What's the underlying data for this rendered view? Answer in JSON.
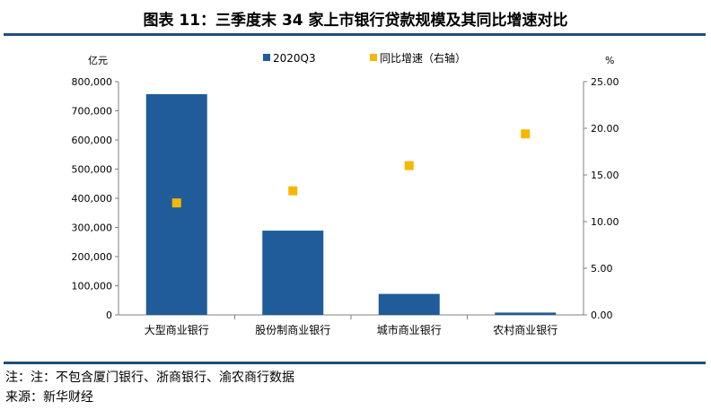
{
  "title": "图表 11：三季度末 34 家上市银行贷款规模及其同比增速对比",
  "notes": {
    "note": "注：注：不包含厦门银行、浙商银行、渝农商行数据",
    "source": "来源：新华财经"
  },
  "colors": {
    "bar": "#1f5c99",
    "marker": "#f5b800",
    "rule": "#1f4e79"
  },
  "chart_data": {
    "type": "bar",
    "categories": [
      "大型商业银行",
      "股份制商业银行",
      "城市商业银行",
      "农村商业银行"
    ],
    "series": [
      {
        "name": "2020Q3",
        "type": "bar",
        "axis": "left",
        "values": [
          757000,
          289000,
          72000,
          8000
        ]
      },
      {
        "name": "同比增速（右轴）",
        "type": "scatter",
        "axis": "right",
        "values": [
          12.0,
          13.3,
          16.0,
          19.4
        ]
      }
    ],
    "y_left": {
      "label": "亿元",
      "min": 0,
      "max": 800000,
      "step": 100000,
      "ticks": [
        "0",
        "100,000",
        "200,000",
        "300,000",
        "400,000",
        "500,000",
        "600,000",
        "700,000",
        "800,000"
      ]
    },
    "y_right": {
      "label": "%",
      "min": 0,
      "max": 25,
      "step": 5,
      "ticks": [
        "0.00",
        "5.00",
        "10.00",
        "15.00",
        "20.00",
        "25.00"
      ]
    },
    "legend_position": "top-center",
    "grid": false
  }
}
